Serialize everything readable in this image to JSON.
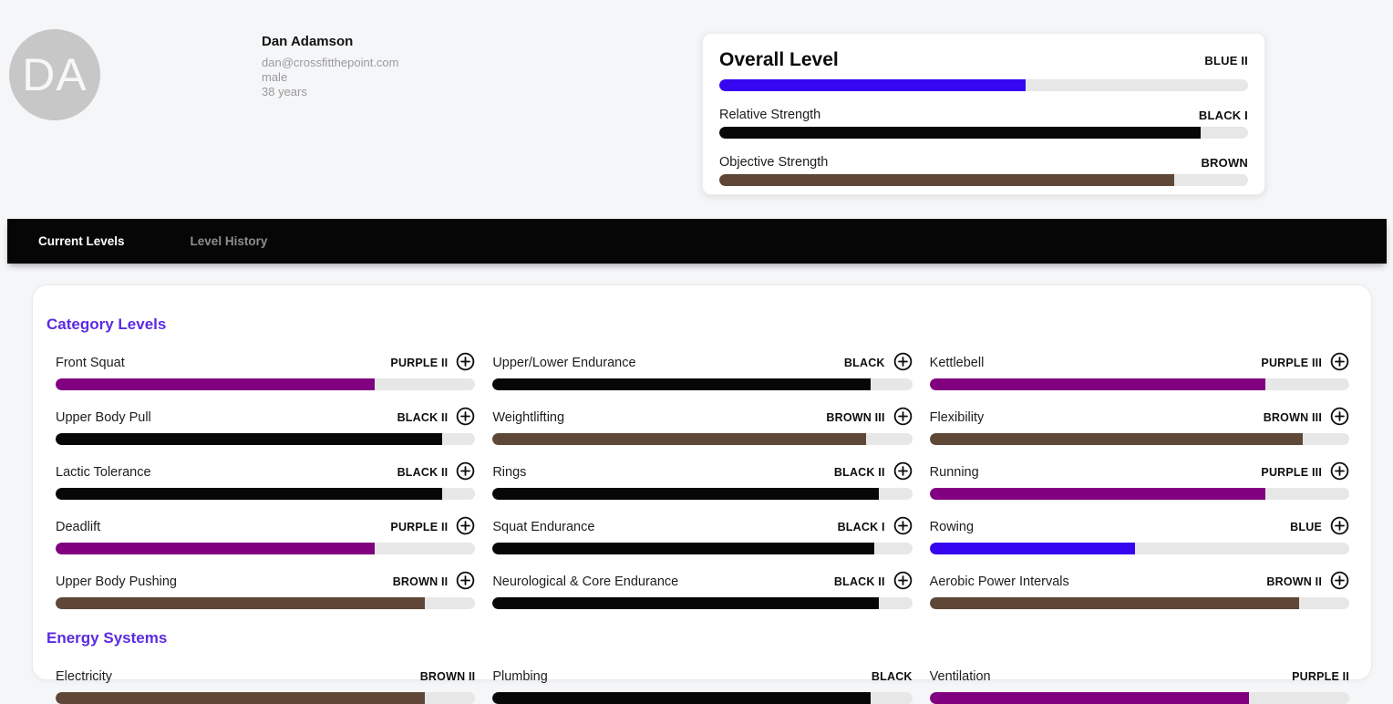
{
  "profile": {
    "initials": "DA",
    "name": "Dan Adamson",
    "email": "dan@crossfitthepoint.com",
    "gender": "male",
    "age": "38 years"
  },
  "overall": {
    "title": "Overall Level",
    "level": "BLUE II",
    "percent": 58,
    "color": "blue",
    "metrics": [
      {
        "label": "Relative Strength",
        "level": "BLACK I",
        "percent": 91,
        "color": "black"
      },
      {
        "label": "Objective Strength",
        "level": "BROWN",
        "percent": 86,
        "color": "brown"
      }
    ]
  },
  "nav": {
    "tabs": [
      {
        "label": "Current Levels",
        "active": true
      },
      {
        "label": "Level History",
        "active": false
      }
    ]
  },
  "sections": [
    {
      "heading": "Category Levels",
      "add_button": true,
      "items": [
        {
          "label": "Front Squat",
          "level": "PURPLE II",
          "percent": 76,
          "color": "purple"
        },
        {
          "label": "Upper Body Pull",
          "level": "BLACK II",
          "percent": 92,
          "color": "black"
        },
        {
          "label": "Lactic Tolerance",
          "level": "BLACK II",
          "percent": 92,
          "color": "black"
        },
        {
          "label": "Deadlift",
          "level": "PURPLE II",
          "percent": 76,
          "color": "purple"
        },
        {
          "label": "Upper Body Pushing",
          "level": "BROWN II",
          "percent": 88,
          "color": "brown"
        },
        {
          "label": "Upper/Lower Endurance",
          "level": "BLACK",
          "percent": 90,
          "color": "black"
        },
        {
          "label": "Weightlifting",
          "level": "BROWN III",
          "percent": 89,
          "color": "brown"
        },
        {
          "label": "Rings",
          "level": "BLACK II",
          "percent": 92,
          "color": "black"
        },
        {
          "label": "Squat Endurance",
          "level": "BLACK I",
          "percent": 91,
          "color": "black"
        },
        {
          "label": "Neurological & Core Endurance",
          "level": "BLACK II",
          "percent": 92,
          "color": "black"
        },
        {
          "label": "Kettlebell",
          "level": "PURPLE III",
          "percent": 80,
          "color": "purple"
        },
        {
          "label": "Flexibility",
          "level": "BROWN III",
          "percent": 89,
          "color": "brown"
        },
        {
          "label": "Running",
          "level": "PURPLE III",
          "percent": 80,
          "color": "purple"
        },
        {
          "label": "Rowing",
          "level": "BLUE",
          "percent": 49,
          "color": "blue"
        },
        {
          "label": "Aerobic Power Intervals",
          "level": "BROWN II",
          "percent": 88,
          "color": "brown"
        }
      ]
    },
    {
      "heading": "Energy Systems",
      "add_button": false,
      "items": [
        {
          "label": "Electricity",
          "level": "BROWN II",
          "percent": 88,
          "color": "brown"
        },
        {
          "label": "Plumbing",
          "level": "BLACK",
          "percent": 90,
          "color": "black"
        },
        {
          "label": "Ventilation",
          "level": "PURPLE II",
          "percent": 76,
          "color": "purple"
        }
      ]
    }
  ],
  "colors": {
    "blue": "#3706f0",
    "purple": "#800080",
    "brown": "#5e4737",
    "black": "#070707",
    "track": "#e7e7e7",
    "heading": "#5b2be0"
  }
}
